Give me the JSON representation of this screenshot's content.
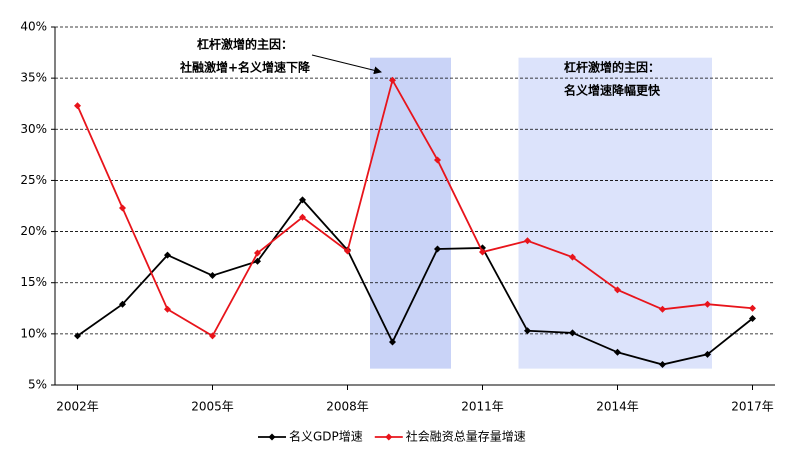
{
  "chart_data": {
    "type": "line",
    "x": [
      2002,
      2003,
      2004,
      2005,
      2006,
      2007,
      2008,
      2009,
      2010,
      2011,
      2012,
      2013,
      2014,
      2015,
      2016,
      2017
    ],
    "series": [
      {
        "name": "名义GDP增速",
        "color": "#000000",
        "values": [
          9.8,
          12.9,
          17.7,
          15.7,
          17.1,
          23.1,
          18.2,
          9.2,
          18.3,
          18.4,
          10.3,
          10.1,
          8.2,
          7.0,
          8.0,
          11.5
        ]
      },
      {
        "name": "社会融资总量存量增速",
        "color": "#e8141b",
        "values": [
          32.3,
          22.3,
          12.4,
          9.8,
          17.9,
          21.4,
          18.1,
          34.8,
          27.0,
          18.0,
          19.1,
          17.5,
          14.3,
          12.4,
          12.9,
          12.5
        ]
      }
    ],
    "xlim": [
      2001.5,
      2017.5
    ],
    "xticks": [
      {
        "value": 2002,
        "label": "2002年"
      },
      {
        "value": 2005,
        "label": "2005年"
      },
      {
        "value": 2008,
        "label": "2008年"
      },
      {
        "value": 2011,
        "label": "2011年"
      },
      {
        "value": 2014,
        "label": "2014年"
      },
      {
        "value": 2017,
        "label": "2017年"
      }
    ],
    "ylim": [
      5,
      40
    ],
    "yticks": [
      {
        "value": 5,
        "label": "5%"
      },
      {
        "value": 10,
        "label": "10%"
      },
      {
        "value": 15,
        "label": "15%"
      },
      {
        "value": 20,
        "label": "20%"
      },
      {
        "value": 25,
        "label": "25%"
      },
      {
        "value": 30,
        "label": "30%"
      },
      {
        "value": 35,
        "label": "35%"
      },
      {
        "value": 40,
        "label": "40%"
      }
    ],
    "grid": true,
    "legend": "bottom",
    "highlights": [
      {
        "x": [
          2008.5,
          2010.3
        ],
        "y": [
          6.6,
          37
        ],
        "color": "#c9d3f7"
      },
      {
        "x": [
          2011.8,
          2016.1
        ],
        "y": [
          6.6,
          37
        ],
        "color": "#dce3fb"
      }
    ],
    "annotations": [
      {
        "lines": [
          "杠杆激增的主因：",
          "社融激增+名义增速下降"
        ]
      },
      {
        "lines": [
          "杠杆激增的主因：",
          "名义增速降幅更快"
        ]
      }
    ]
  }
}
